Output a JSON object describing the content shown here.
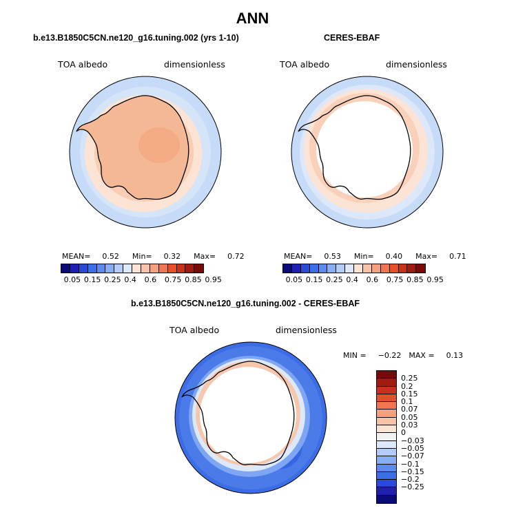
{
  "figure": {
    "title": "ANN"
  },
  "panels": [
    {
      "title": "b.e13.B1850C5CN.ne120_g16.tuning.002 (yrs 1-10)",
      "left_label": "TOA albedo",
      "right_label": "dimensionless",
      "stats": {
        "mean_label": "MEAN=",
        "mean": "0.52",
        "min_label": "Min=",
        "min": "0.32",
        "max_label": "Max=",
        "max": "0.72"
      }
    },
    {
      "title": "CERES-EBAF",
      "left_label": "TOA albedo",
      "right_label": "dimensionless",
      "stats": {
        "mean_label": "MEAN=",
        "mean": "0.53",
        "min_label": "Min=",
        "min": "0.40",
        "max_label": "Max=",
        "max": "0.71"
      }
    }
  ],
  "diff_panel": {
    "title": "b.e13.B1850C5CN.ne120_g16.tuning.002 - CERES-EBAF",
    "left_label": "TOA albedo",
    "right_label": "dimensionless",
    "stats": {
      "min_label": "MIN =",
      "min": "−0.22",
      "max_label": "MAX =",
      "max": "0.13"
    }
  },
  "colorbar_top": {
    "colors": [
      "#0a0a7a",
      "#1f1fb4",
      "#2a4bd6",
      "#3c6ee8",
      "#5a8cf0",
      "#86aef5",
      "#b4cdf7",
      "#dde8fa",
      "#fbe3d6",
      "#f8c4a8",
      "#f5a07e",
      "#f07650",
      "#e5502a",
      "#c8311a",
      "#a01a10",
      "#780a0a"
    ],
    "ticks": [
      "0.05",
      "0.15",
      "0.25",
      "0.4",
      "0.6",
      "0.75",
      "0.85",
      "0.95"
    ]
  },
  "colorbar_diff": {
    "colors": [
      "#780a0a",
      "#a01a10",
      "#c8311a",
      "#e5502a",
      "#f07650",
      "#f5a07e",
      "#f8c4a8",
      "#fbe3d6",
      "#f2f2f2",
      "#dde8fa",
      "#b4cdf7",
      "#86aef5",
      "#5a8cf0",
      "#3c6ee8",
      "#2a4bd6",
      "#1f1fb4",
      "#0a0a7a"
    ],
    "ticks": [
      "0.25",
      "0.2",
      "0.15",
      "0.1",
      "0.07",
      "0.05",
      "0.03",
      "0",
      "−0.03",
      "−0.05",
      "−0.07",
      "−0.1",
      "−0.15",
      "−0.2",
      "−0.25"
    ]
  }
}
